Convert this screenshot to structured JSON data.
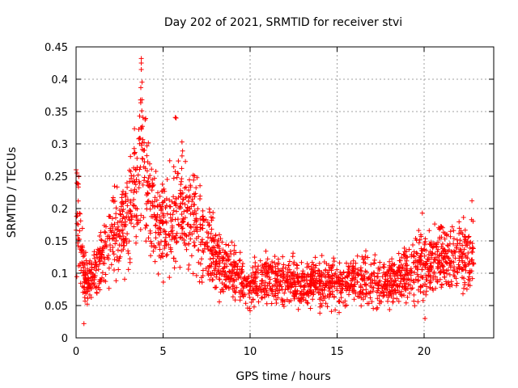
{
  "chart_data": {
    "type": "scatter",
    "title": "Day 202 of 2021, SRMTID for receiver stvi",
    "xlabel": "GPS time / hours",
    "ylabel": "SRMTID / TECUs",
    "xlim": [
      0,
      24
    ],
    "ylim": [
      0,
      0.45
    ],
    "x_ticks": [
      0,
      5,
      10,
      15,
      20
    ],
    "y_ticks": [
      0,
      0.05,
      0.1,
      0.15,
      0.2,
      0.25,
      0.3,
      0.35,
      0.4,
      0.45
    ],
    "x_tick_labels": [
      "0",
      "5",
      "10",
      "15",
      "20"
    ],
    "y_tick_labels": [
      "0",
      "0.05",
      "0.1",
      "0.15",
      "0.2",
      "0.25",
      "0.3",
      "0.35",
      "0.4",
      "0.45"
    ],
    "grid": true,
    "marker": "+",
    "color": "#ff0000",
    "series": [
      {
        "name": "SRMTID",
        "x_range": [
          0,
          22.85
        ],
        "trend_hours": [
          0,
          0.1,
          0.3,
          0.6,
          1.0,
          1.5,
          2.0,
          2.5,
          3.0,
          3.5,
          3.8,
          4.1,
          4.5,
          5.0,
          5.5,
          6.0,
          6.5,
          7.0,
          7.5,
          8.0,
          9.0,
          10.0,
          11.0,
          12.0,
          13.0,
          14.0,
          15.0,
          16.0,
          17.0,
          18.0,
          18.5,
          19.0,
          19.5,
          20.0,
          21.0,
          22.0,
          22.85
        ],
        "trend_values": [
          0.2,
          0.2,
          0.13,
          0.08,
          0.1,
          0.12,
          0.15,
          0.17,
          0.19,
          0.24,
          0.27,
          0.23,
          0.19,
          0.17,
          0.19,
          0.2,
          0.19,
          0.17,
          0.14,
          0.12,
          0.1,
          0.08,
          0.09,
          0.085,
          0.085,
          0.085,
          0.085,
          0.09,
          0.09,
          0.085,
          0.1,
          0.1,
          0.11,
          0.11,
          0.12,
          0.12,
          0.13
        ],
        "highlighted_points": [
          {
            "x": 3.75,
            "y": 0.432
          },
          {
            "x": 3.75,
            "y": 0.425
          },
          {
            "x": 3.75,
            "y": 0.415
          },
          {
            "x": 3.72,
            "y": 0.387
          },
          {
            "x": 3.7,
            "y": 0.368
          },
          {
            "x": 3.65,
            "y": 0.343
          },
          {
            "x": 5.7,
            "y": 0.341
          },
          {
            "x": 5.75,
            "y": 0.34
          },
          {
            "x": 0.0,
            "y": 0.26
          },
          {
            "x": 0.05,
            "y": 0.255
          },
          {
            "x": 22.75,
            "y": 0.212
          },
          {
            "x": 19.9,
            "y": 0.193
          },
          {
            "x": 0.45,
            "y": 0.022
          },
          {
            "x": 20.05,
            "y": 0.03
          },
          {
            "x": 10.0,
            "y": 0.042
          }
        ]
      }
    ]
  }
}
